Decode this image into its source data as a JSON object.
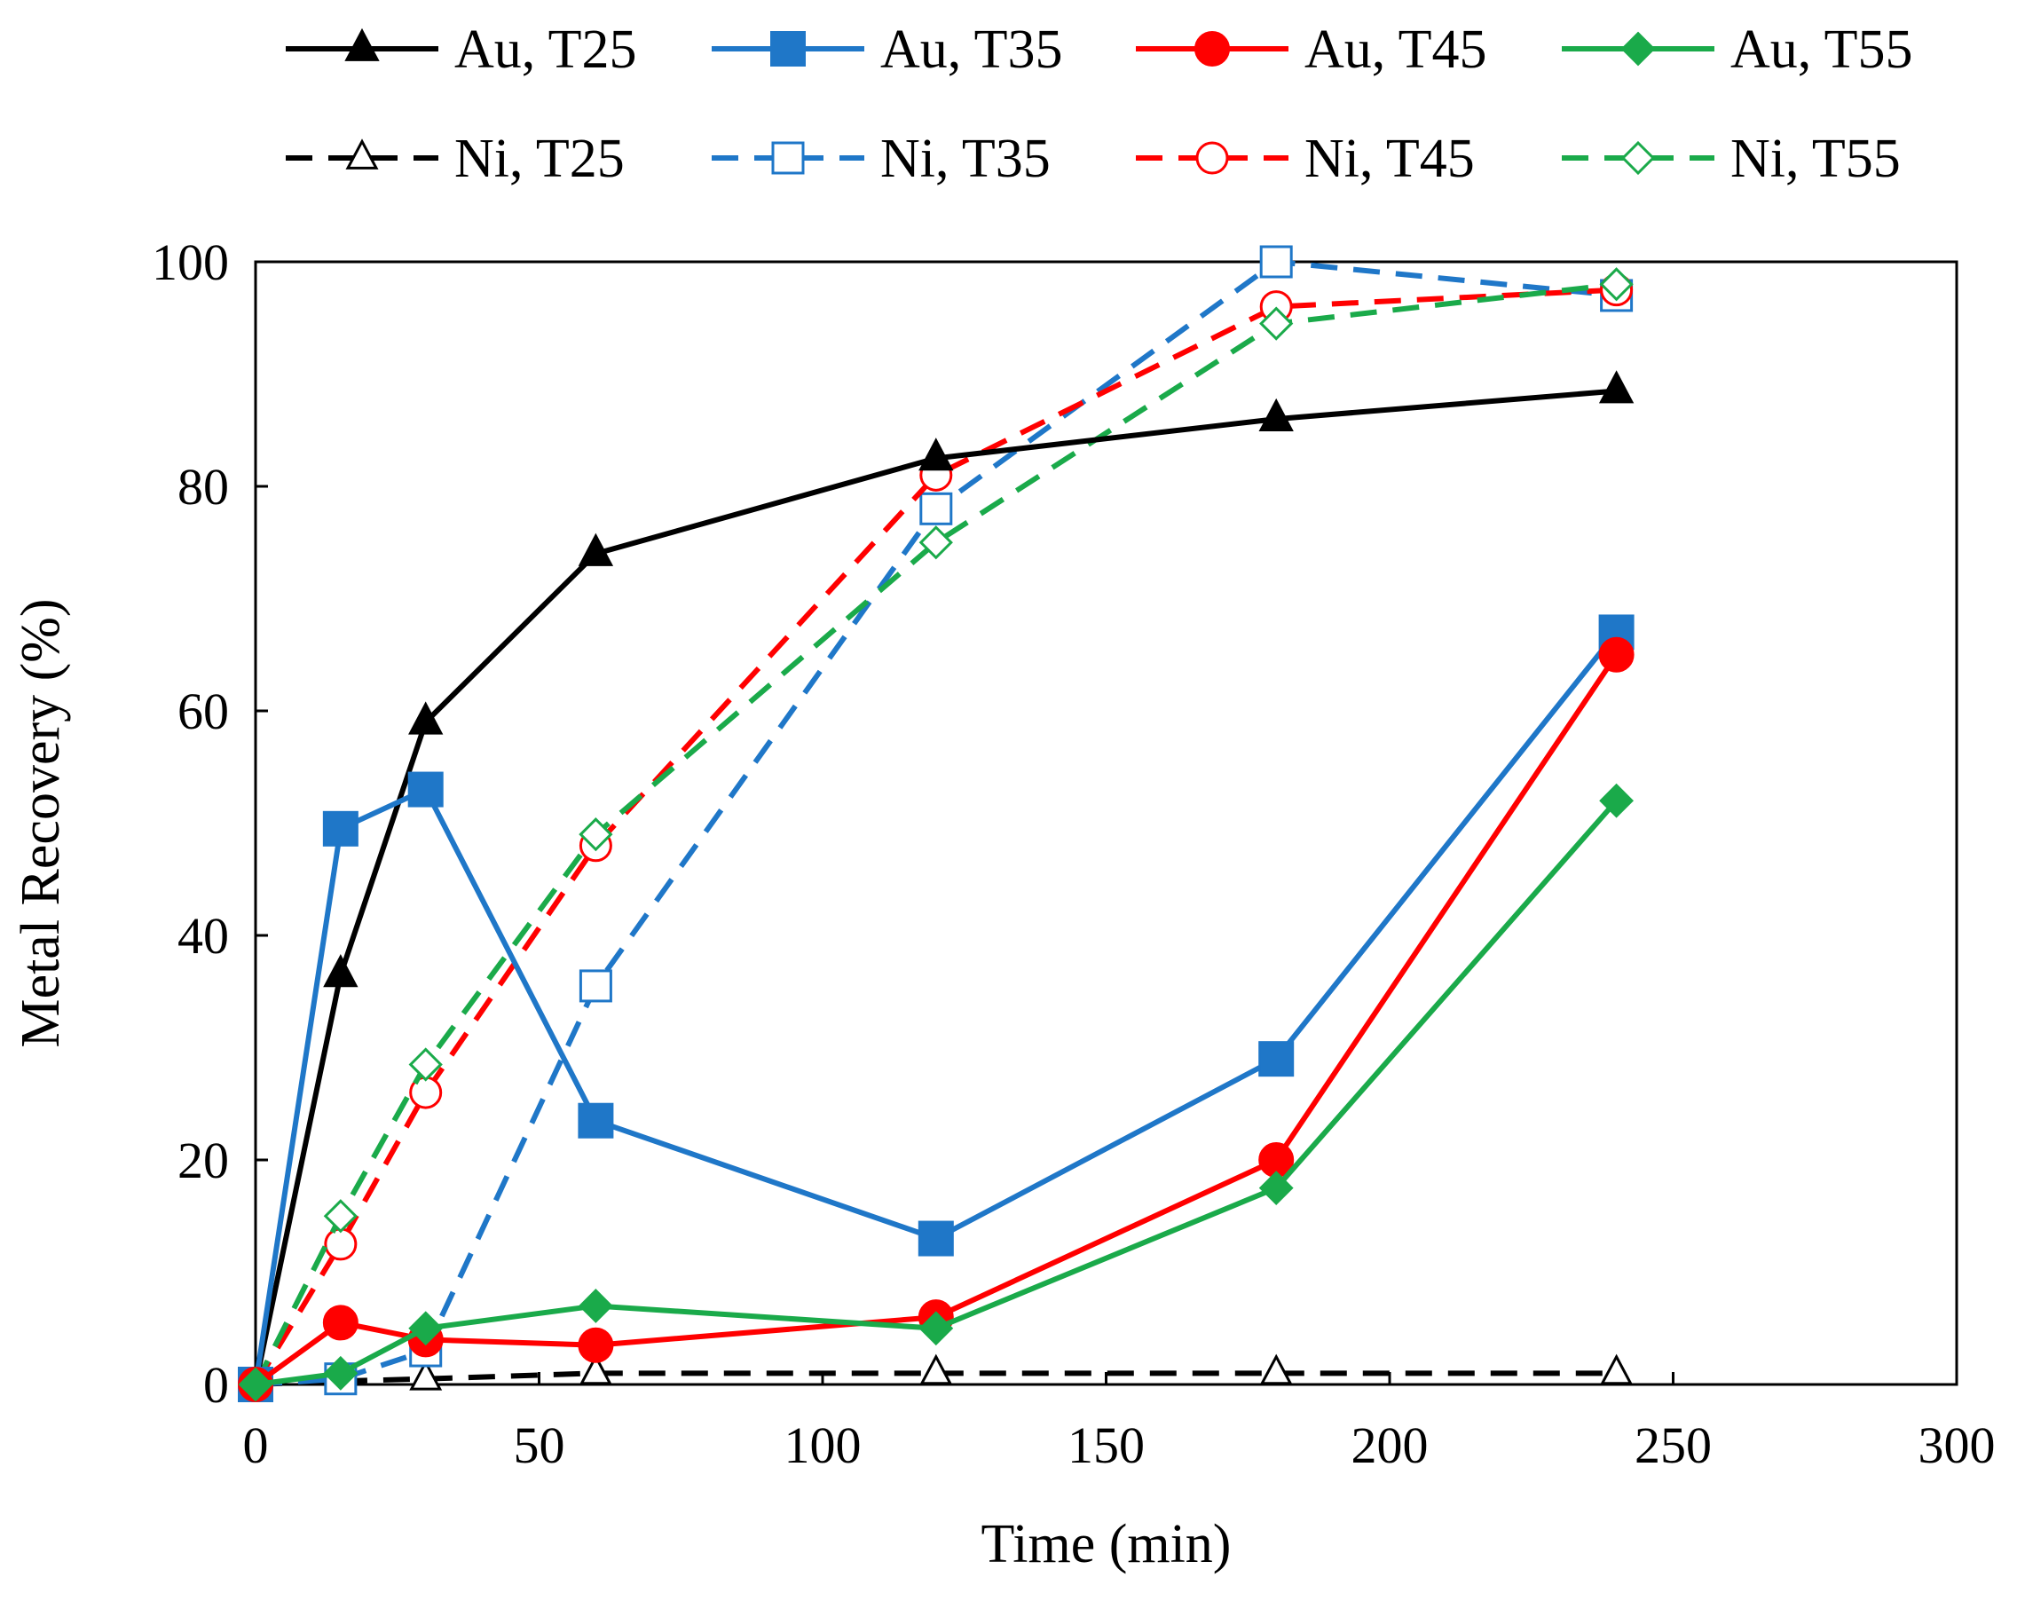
{
  "chart_data": {
    "type": "line",
    "title": "",
    "xlabel": "Time (min)",
    "ylabel": "Metal Recovery (%)",
    "xlim": [
      0,
      300
    ],
    "ylim": [
      0,
      100
    ],
    "x_ticks": [
      0,
      50,
      100,
      150,
      200,
      250,
      300
    ],
    "y_ticks": [
      0,
      20,
      40,
      60,
      80,
      100
    ],
    "grid": false,
    "legend_position": "top",
    "x": [
      0,
      15,
      30,
      60,
      120,
      180,
      240
    ],
    "series": [
      {
        "name": "Au, T25",
        "color": "#000000",
        "dash": "solid",
        "marker": "triangle",
        "filled": true,
        "values": [
          0,
          36.5,
          59,
          74,
          82.5,
          86,
          88.5
        ]
      },
      {
        "name": "Au, T35",
        "color": "#1f77c8",
        "dash": "solid",
        "marker": "square",
        "filled": true,
        "values": [
          0,
          49.5,
          53,
          23.5,
          13,
          29,
          67
        ]
      },
      {
        "name": "Au, T45",
        "color": "#ff0000",
        "dash": "solid",
        "marker": "circle",
        "filled": true,
        "values": [
          0,
          5.5,
          4,
          3.5,
          6,
          20,
          65
        ]
      },
      {
        "name": "Au, T55",
        "color": "#1aaa4a",
        "dash": "solid",
        "marker": "diamond",
        "filled": true,
        "values": [
          0,
          1,
          5,
          7,
          5,
          17.5,
          52
        ]
      },
      {
        "name": "Ni, T25",
        "color": "#000000",
        "dash": "dashed",
        "marker": "triangle",
        "filled": false,
        "values": [
          0,
          0.3,
          0.5,
          1,
          1,
          1,
          1
        ]
      },
      {
        "name": "Ni, T35",
        "color": "#1f77c8",
        "dash": "dashed",
        "marker": "square",
        "filled": false,
        "values": [
          0,
          0.5,
          3,
          35.5,
          78,
          100,
          97
        ]
      },
      {
        "name": "Ni, T45",
        "color": "#ff0000",
        "dash": "dashed",
        "marker": "circle",
        "filled": false,
        "values": [
          0,
          12.5,
          26,
          48,
          81,
          96,
          97.5
        ]
      },
      {
        "name": "Ni, T55",
        "color": "#1aaa4a",
        "dash": "dashed",
        "marker": "diamond",
        "filled": false,
        "values": [
          0,
          15,
          28.5,
          49,
          75,
          94.5,
          98
        ]
      }
    ]
  }
}
